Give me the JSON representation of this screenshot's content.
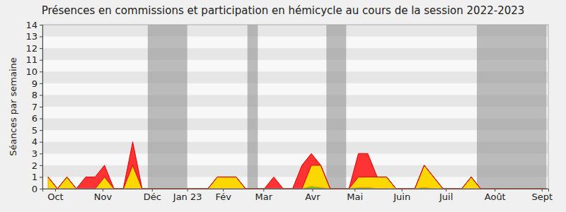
{
  "chart_data": {
    "type": "area",
    "title": "Présences en commissions et participation en hémicycle au cours de la session 2022-2023",
    "y_label": "Séances par semaine",
    "stacked": true,
    "grid": true,
    "x": [
      0,
      1,
      2,
      3,
      4,
      5,
      6,
      7,
      8,
      9,
      10,
      11,
      12,
      13,
      14,
      15,
      16,
      17,
      18,
      19,
      20,
      21,
      22,
      23,
      24,
      25,
      26,
      27,
      28,
      29,
      30,
      31,
      32,
      33,
      34,
      35,
      36,
      37,
      38,
      39,
      40,
      41,
      42,
      43,
      44,
      45,
      46,
      47,
      48,
      49,
      50,
      51,
      52,
      53
    ],
    "series": [
      {
        "color": "#66cc00",
        "values": [
          0,
          0,
          0,
          0,
          0,
          0,
          0,
          0,
          0,
          0,
          0,
          0,
          0,
          0,
          0,
          0,
          0,
          0,
          0,
          0,
          0,
          0,
          0,
          0,
          0,
          0,
          0,
          0,
          0.2,
          0.1,
          0,
          0,
          0,
          0.1,
          0.1,
          0,
          0,
          0,
          0,
          0,
          0.1,
          0,
          0,
          0,
          0,
          0,
          0,
          0,
          0,
          0,
          0,
          0,
          0,
          0
        ]
      },
      {
        "color": "#ffd700",
        "values": [
          1,
          0,
          1,
          0,
          0,
          0,
          1,
          0,
          0,
          2,
          0,
          0,
          0,
          0,
          0,
          0,
          0,
          0,
          1,
          1,
          1,
          0,
          0,
          0,
          0,
          0,
          0,
          0,
          1.8,
          1.9,
          0,
          0,
          0,
          0.9,
          0.9,
          1,
          1,
          0,
          0,
          0,
          1.9,
          1,
          0,
          0,
          0,
          1,
          0,
          0,
          0,
          0,
          0,
          0,
          0,
          0
        ]
      },
      {
        "color": "#ff3333",
        "values": [
          0,
          0,
          0,
          0,
          1,
          1,
          1,
          0,
          0,
          2,
          0,
          0,
          0,
          0,
          0,
          0,
          0,
          0,
          0,
          0,
          0,
          0,
          0,
          0,
          1,
          0,
          0,
          2,
          1,
          0,
          0,
          0,
          0,
          2,
          2,
          0,
          0,
          0,
          0,
          0,
          0,
          0,
          0,
          0,
          0,
          0,
          0,
          0,
          0,
          0,
          0,
          0,
          0,
          0
        ]
      }
    ],
    "shaded_ranges": [
      [
        10.6,
        14.8
      ],
      [
        21.2,
        22.3
      ],
      [
        29.6,
        31.7
      ],
      [
        45.6,
        53
      ]
    ],
    "xlim": [
      -0.6,
      53.2
    ],
    "xticks": [
      {
        "value": 0.75,
        "label": "Oct"
      },
      {
        "value": 5.8,
        "label": "Nov"
      },
      {
        "value": 11.05,
        "label": "Déc"
      },
      {
        "value": 14.8,
        "label": "Jan 23"
      },
      {
        "value": 18.6,
        "label": "Fév"
      },
      {
        "value": 22.9,
        "label": "Mar"
      },
      {
        "value": 28.1,
        "label": "Avr"
      },
      {
        "value": 32.6,
        "label": "Mai"
      },
      {
        "value": 37.6,
        "label": "Juin"
      },
      {
        "value": 42.3,
        "label": "Juil"
      },
      {
        "value": 47.5,
        "label": "Août"
      },
      {
        "value": 52.5,
        "label": "Sept"
      }
    ],
    "ylim": [
      0,
      14
    ],
    "yticks": [
      0,
      1,
      2,
      3,
      4,
      5,
      6,
      7,
      8,
      9,
      10,
      11,
      12,
      13,
      14
    ]
  }
}
